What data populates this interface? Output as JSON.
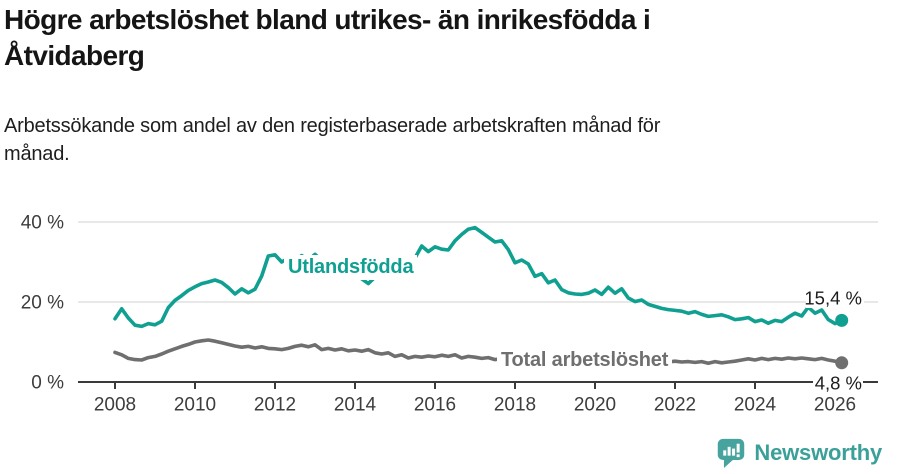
{
  "header": {
    "title_line1": "Högre arbetslöshet bland utrikes- än inrikesfödda i",
    "title_line2": "Åtvidaberg",
    "subtitle_line1": "Arbetssökande som andel av den registerbaserade arbetskraften månad för",
    "subtitle_line2": "månad."
  },
  "footer": {
    "brand": "Newsworthy",
    "brand_color": "#3aa098",
    "logo_color": "#46a39d"
  },
  "colors": {
    "axis": "#3a3a3a",
    "grid": "#d9d9d9",
    "tick_text": "#3d3d3d",
    "end_label_text": "#1c1c1c",
    "background": "#ffffff"
  },
  "chart_data": {
    "type": "line",
    "title": "Högre arbetslöshet bland utrikes- än inrikesfödda i Åtvidaberg",
    "subtitle": "Arbetssökande som andel av den registerbaserade arbetskraften månad för månad.",
    "xlabel": "",
    "ylabel": "",
    "x_unit": "year",
    "y_unit": "%",
    "grid": "horizontal",
    "legend_position": "inline-labels",
    "x_start": 2008,
    "x_step_years": 0.1666667,
    "xlim": [
      2007.1,
      2027.1
    ],
    "ylim": [
      0,
      40
    ],
    "x_ticks": [
      {
        "year": 2008,
        "label": "2008"
      },
      {
        "year": 2010,
        "label": "2010"
      },
      {
        "year": 2012,
        "label": "2012"
      },
      {
        "year": 2014,
        "label": "2014"
      },
      {
        "year": 2016,
        "label": "2016"
      },
      {
        "year": 2018,
        "label": "2018"
      },
      {
        "year": 2020,
        "label": "2020"
      },
      {
        "year": 2022,
        "label": "2022"
      },
      {
        "year": 2024,
        "label": "2024"
      },
      {
        "year": 2026,
        "label": "2026"
      }
    ],
    "y_ticks": [
      {
        "value": 0,
        "label": "0 %"
      },
      {
        "value": 20,
        "label": "20 %"
      },
      {
        "value": 40,
        "label": "40 %"
      }
    ],
    "series": [
      {
        "name": "Utlandsfödda",
        "color": "#10a091",
        "end_label": "15,4 %",
        "end_value": 15.4,
        "values": [
          15.8,
          18.3,
          16.0,
          14.2,
          13.9,
          14.6,
          14.3,
          15.2,
          18.6,
          20.4,
          21.6,
          22.9,
          23.8,
          24.6,
          25.0,
          25.5,
          24.9,
          23.6,
          22.0,
          23.3,
          22.3,
          23.2,
          26.5,
          31.5,
          31.8,
          30.0,
          31.0,
          30.3,
          31.6,
          30.5,
          31.9,
          30.4,
          29.6,
          31.3,
          30.0,
          28.6,
          27.4,
          25.8,
          24.6,
          26.2,
          27.4,
          28.0,
          28.6,
          27.8,
          29.2,
          31.0,
          34.0,
          32.6,
          33.8,
          33.2,
          33.0,
          35.3,
          36.9,
          38.2,
          38.6,
          37.4,
          36.2,
          35.0,
          35.3,
          33.1,
          29.8,
          30.5,
          29.5,
          26.4,
          27.1,
          24.8,
          25.5,
          23.1,
          22.3,
          22.0,
          21.9,
          22.2,
          23.0,
          21.9,
          23.7,
          22.2,
          23.3,
          21.0,
          20.1,
          20.5,
          19.4,
          18.9,
          18.4,
          18.1,
          17.9,
          17.7,
          17.2,
          17.6,
          16.9,
          16.4,
          16.6,
          16.8,
          16.3,
          15.6,
          15.8,
          16.1,
          15.1,
          15.5,
          14.7,
          15.4,
          15.1,
          16.2,
          17.2,
          16.5,
          18.7,
          17.2,
          18.0,
          15.6,
          14.6,
          15.4
        ]
      },
      {
        "name": "Total arbetslöshet",
        "color": "#6f6f6f",
        "end_label": "4,8 %",
        "end_value": 4.8,
        "values": [
          7.4,
          6.8,
          5.9,
          5.6,
          5.5,
          6.1,
          6.4,
          7.0,
          7.7,
          8.3,
          8.9,
          9.4,
          10.0,
          10.3,
          10.5,
          10.2,
          9.8,
          9.4,
          9.0,
          8.7,
          8.9,
          8.5,
          8.8,
          8.4,
          8.3,
          8.1,
          8.4,
          8.9,
          9.2,
          8.8,
          9.3,
          8.1,
          8.4,
          8.0,
          8.3,
          7.8,
          8.0,
          7.7,
          8.1,
          7.3,
          7.0,
          7.3,
          6.4,
          6.8,
          6.0,
          6.4,
          6.2,
          6.5,
          6.3,
          6.7,
          6.4,
          6.8,
          6.0,
          6.4,
          6.2,
          5.9,
          6.1,
          5.6,
          5.9,
          6.1,
          5.8,
          6.6,
          6.2,
          6.8,
          6.0,
          5.7,
          5.8,
          5.5,
          5.9,
          6.1,
          5.8,
          5.6,
          5.9,
          6.2,
          6.0,
          5.7,
          5.5,
          5.3,
          5.5,
          5.2,
          5.4,
          5.1,
          5.3,
          5.0,
          5.2,
          5.0,
          5.1,
          4.9,
          5.1,
          4.7,
          5.1,
          4.8,
          5.0,
          5.2,
          5.5,
          5.8,
          5.5,
          5.9,
          5.6,
          5.9,
          5.7,
          6.0,
          5.8,
          6.0,
          5.8,
          5.6,
          5.9,
          5.5,
          5.2,
          4.8
        ]
      }
    ]
  }
}
